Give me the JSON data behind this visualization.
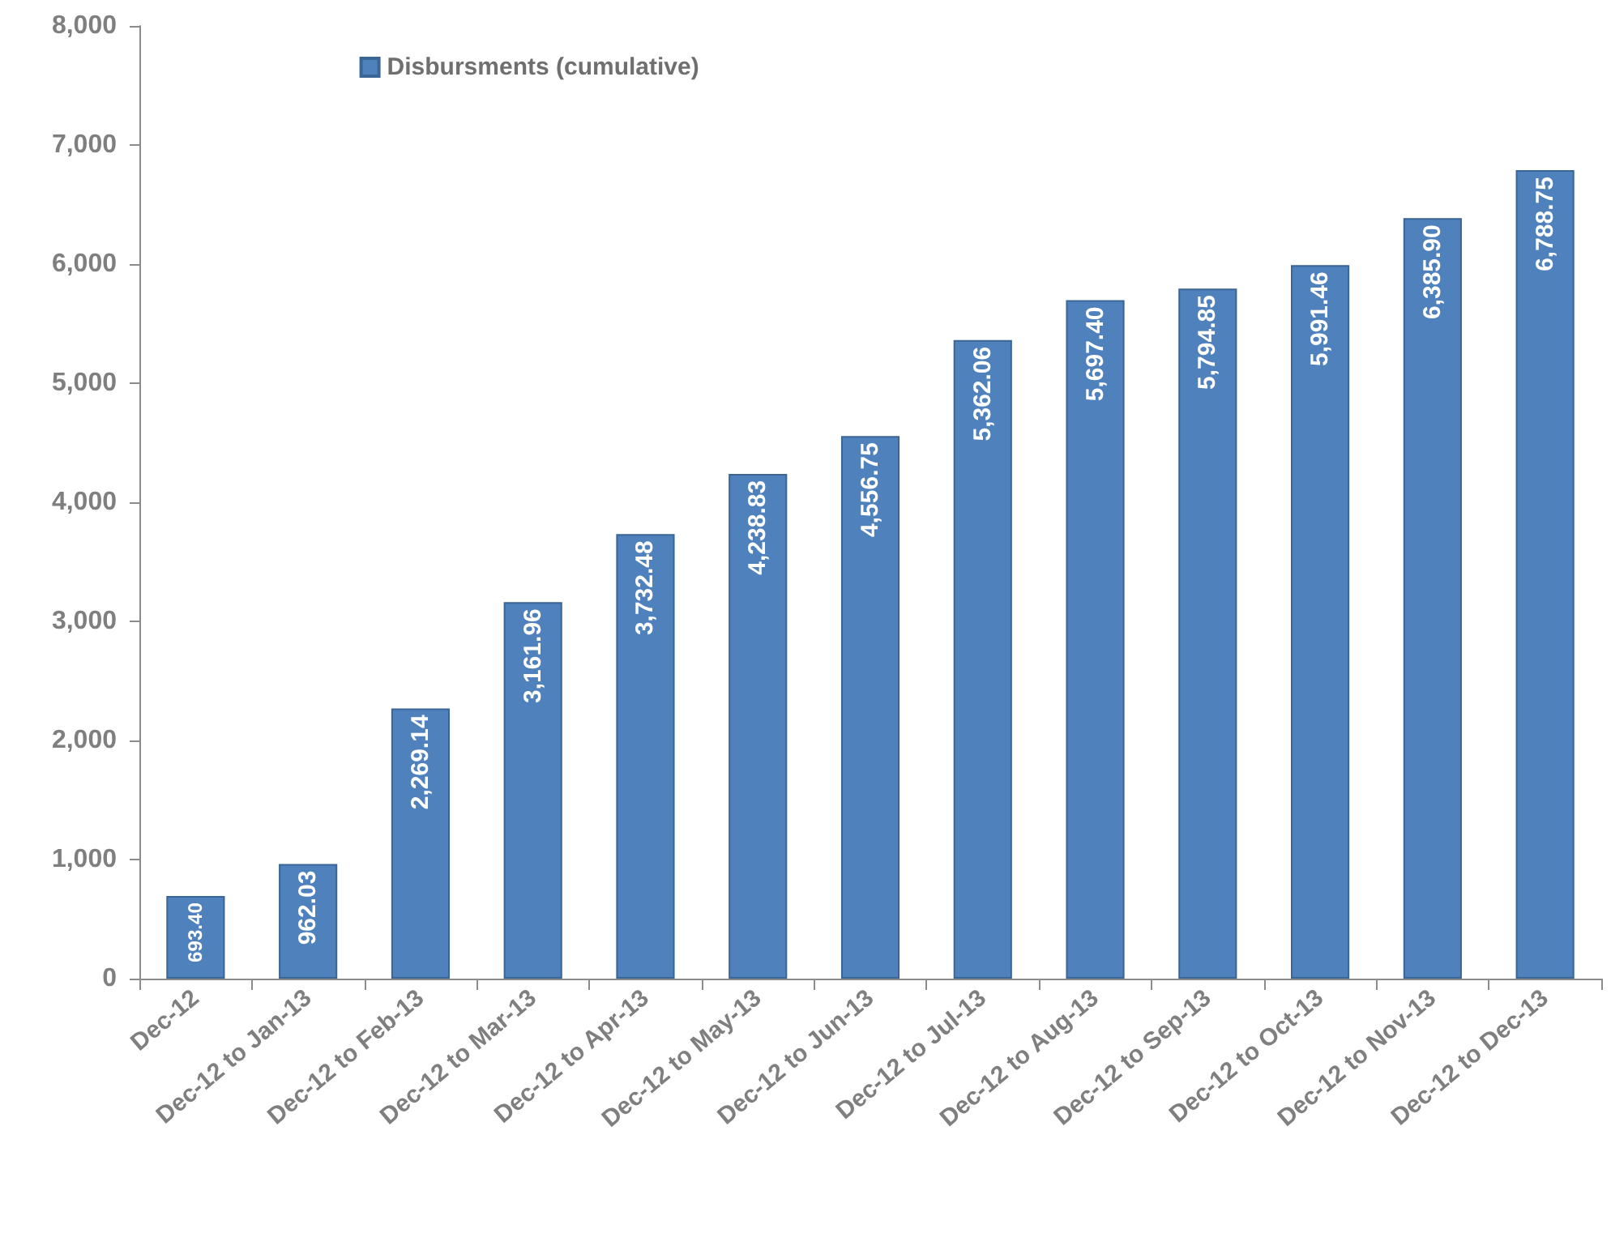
{
  "chart_data": {
    "type": "bar",
    "categories": [
      "Dec-12",
      "Dec-12 to Jan-13",
      "Dec-12 to Feb-13",
      "Dec-12 to Mar-13",
      "Dec-12 to Apr-13",
      "Dec-12 to May-13",
      "Dec-12 to Jun-13",
      "Dec-12 to Jul-13",
      "Dec-12 to Aug-13",
      "Dec-12 to Sep-13",
      "Dec-12 to Oct-13",
      "Dec-12 to Nov-13",
      "Dec-12 to Dec-13"
    ],
    "series": [
      {
        "name": "Disbursments (cumulative)",
        "color": "#4f81bd",
        "values": [
          693.4,
          962.03,
          2269.14,
          3161.96,
          3732.48,
          4238.83,
          4556.75,
          5362.06,
          5697.4,
          5794.85,
          5991.46,
          6385.9,
          6788.75
        ],
        "value_labels": [
          "693.40",
          "962.03",
          "2,269.14",
          "3,161.96",
          "3,732.48",
          "4,238.83",
          "4,556.75",
          "5,362.06",
          "5,697.40",
          "5,794.85",
          "5,991.46",
          "6,385.90",
          "6,788.75"
        ]
      }
    ],
    "ylim": [
      0,
      8000
    ],
    "yticks": [
      0,
      {
        "value": 1000,
        "label": "1,000"
      },
      {
        "value": 2000,
        "label": "2,000"
      },
      {
        "value": 3000,
        "label": "3,000"
      },
      {
        "value": 4000,
        "label": "4,000"
      },
      {
        "value": 5000,
        "label": "5,000"
      },
      {
        "value": 6000,
        "label": "6,000"
      },
      {
        "value": 7000,
        "label": "7,000"
      },
      {
        "value": 8000,
        "label": "8,000"
      }
    ],
    "grid": false,
    "legend": "top left"
  }
}
